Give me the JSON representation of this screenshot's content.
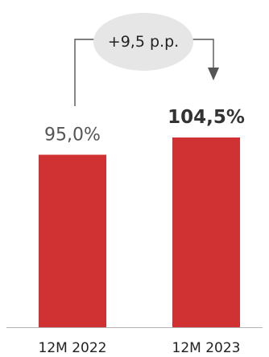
{
  "chart_data": {
    "type": "bar",
    "categories": [
      "12M 2022",
      "12M 2023"
    ],
    "values": [
      95.0,
      104.5
    ],
    "value_labels": [
      "95,0%",
      "104,5%"
    ],
    "bold_label_index": 1,
    "ylim": [
      0,
      120
    ],
    "grid": false,
    "bar_color": "#d03233",
    "annotation": {
      "text": "+9,5 p.p.",
      "from_category": "12M 2022",
      "to_category": "12M 2023",
      "bubble_color": "#e6e6e6",
      "arrow_color": "#555555"
    },
    "title": "",
    "xlabel": "",
    "ylabel": ""
  }
}
